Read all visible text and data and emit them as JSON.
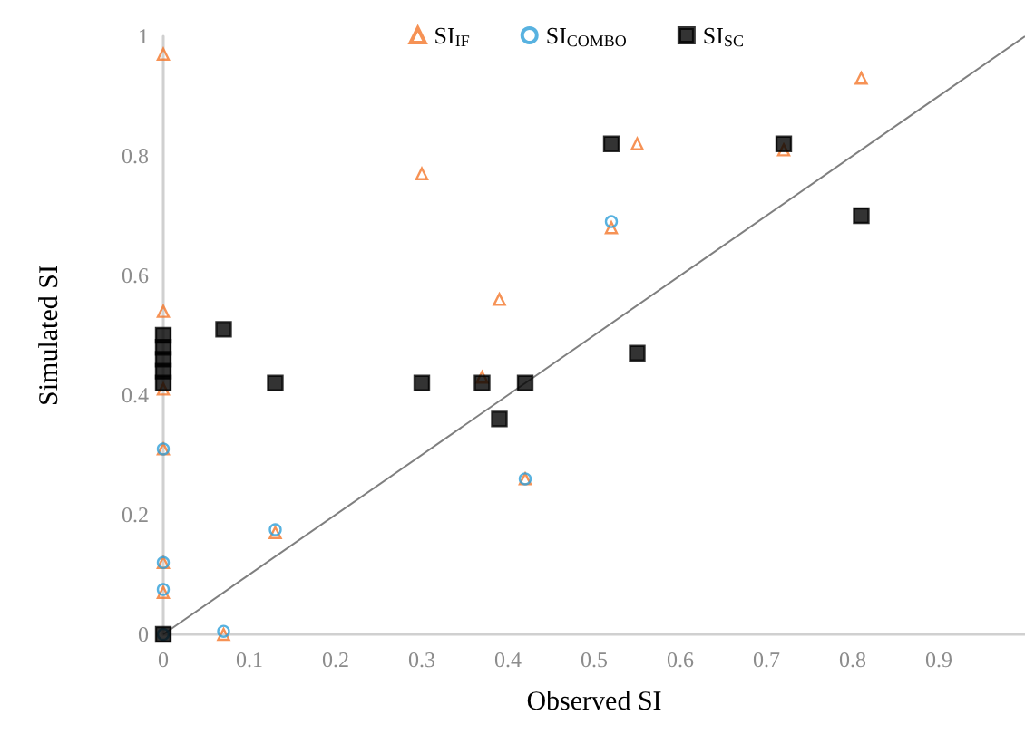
{
  "chart_data": {
    "type": "scatter",
    "xlabel": "Observed SI",
    "ylabel": "Simulated SI",
    "xlim": [
      0,
      1
    ],
    "ylim": [
      0,
      1
    ],
    "xticks": [
      0,
      0.1,
      0.2,
      0.3,
      0.4,
      0.5,
      0.6,
      0.7,
      0.8,
      0.9
    ],
    "yticks": [
      0,
      0.2,
      0.4,
      0.6,
      0.8,
      1
    ],
    "grid": false,
    "legend": "top right",
    "series": [
      {
        "name": "SI$_{IF}$",
        "color": "#f4772b",
        "marker": "triangle",
        "x": [
          0,
          0,
          0,
          0,
          0,
          0,
          0.07,
          0.13,
          0.3,
          0.37,
          0.39,
          0.42,
          0.52,
          0.55,
          0.72,
          0.81
        ],
        "values": [
          0.97,
          0.54,
          0.41,
          0.31,
          0.12,
          0.07,
          0.0,
          0.17,
          0.77,
          0.43,
          0.56,
          0.26,
          0.68,
          0.82,
          0.81,
          0.93
        ]
      },
      {
        "name": "SI$_{COMBO}$",
        "color": "#2e9fd8",
        "marker": "circle",
        "x": [
          0,
          0,
          0,
          0,
          0.07,
          0.13,
          0.42,
          0.52
        ],
        "values": [
          0.31,
          0.12,
          0.075,
          0.0,
          0.005,
          0.175,
          0.26,
          0.69
        ]
      },
      {
        "name": "SI$_{SC}$",
        "color": "#000000",
        "marker": "square",
        "x": [
          0,
          0,
          0,
          0,
          0,
          0,
          0.07,
          0.13,
          0.3,
          0.37,
          0.39,
          0.42,
          0.52,
          0.55,
          0.72,
          0.81
        ],
        "values": [
          0,
          0.42,
          0.44,
          0.46,
          0.48,
          0.5,
          0.51,
          0.42,
          0.42,
          0.42,
          0.36,
          0.42,
          0.82,
          0.47,
          0.82,
          0.7
        ]
      },
      {
        "type": "line",
        "color": "#7f7f7f",
        "marker": "none",
        "x": [
          0,
          1
        ],
        "values": [
          0,
          1
        ]
      }
    ]
  }
}
